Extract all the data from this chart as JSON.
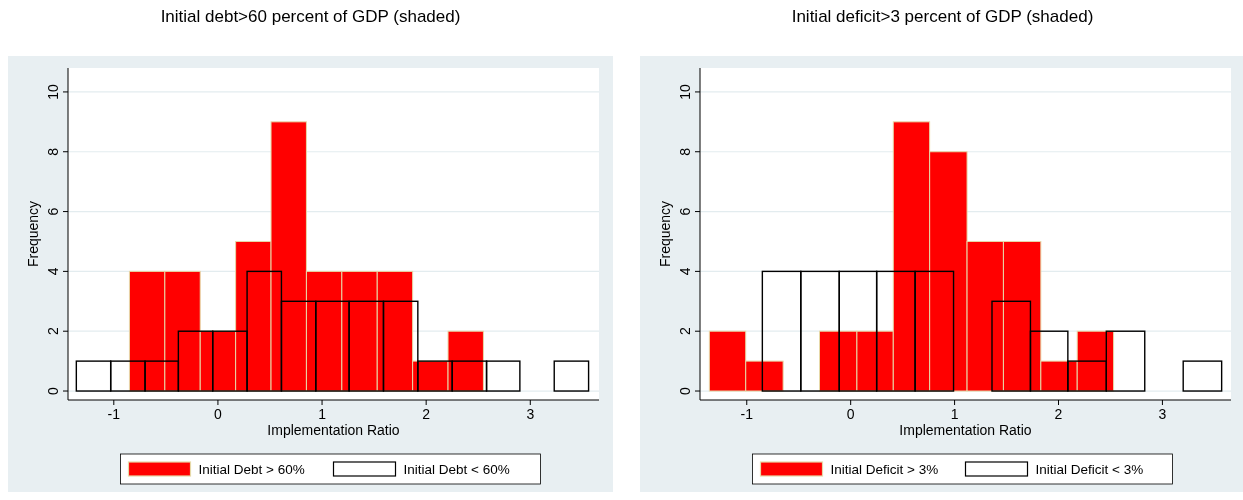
{
  "chart_data": [
    {
      "type": "histogram",
      "title": "Initial debt>60 percent of GDP (shaded)",
      "xlabel": "Implementation Ratio",
      "ylabel": "Frequency",
      "xlim": [
        -1.44,
        3.66
      ],
      "ylim": [
        -0.3,
        10.8
      ],
      "xticks": [
        -1,
        0,
        1,
        2,
        3
      ],
      "yticks": [
        0,
        2,
        4,
        6,
        8,
        10
      ],
      "grid": "y",
      "legend": "bottom",
      "bins": [
        -0.85,
        -0.51,
        -0.17,
        0.17,
        0.51,
        0.85,
        1.19,
        1.53,
        1.87,
        2.21,
        2.55
      ],
      "series": [
        {
          "name": "Initial Debt > 60%",
          "color": "#ff0000",
          "values": [
            4,
            4,
            2,
            5,
            9,
            4,
            4,
            4,
            1,
            2
          ]
        },
        {
          "name": "Initial Debt < 60%",
          "color": "#000000",
          "bins": [
            -1.36,
            -1.03,
            -0.7,
            -0.38,
            -0.05,
            0.28,
            0.61,
            0.94,
            1.26,
            1.59,
            1.92,
            2.25,
            2.58,
            2.9,
            3.23,
            3.56
          ],
          "values": [
            1,
            1,
            1,
            2,
            2,
            4,
            3,
            3,
            3,
            3,
            1,
            1,
            1,
            0,
            1
          ]
        }
      ]
    },
    {
      "type": "histogram",
      "title": "Initial deficit>3 percent of GDP (shaded)",
      "xlabel": "Implementation Ratio",
      "ylabel": "Frequency",
      "xlim": [
        -1.45,
        3.66
      ],
      "ylim": [
        -0.3,
        10.8
      ],
      "xticks": [
        -1,
        0,
        1,
        2,
        3
      ],
      "yticks": [
        0,
        2,
        4,
        6,
        8,
        10
      ],
      "grid": "y",
      "legend": "bottom",
      "bins": [
        -1.36,
        -1.01,
        -0.65,
        -0.3,
        0.06,
        0.41,
        0.76,
        1.12,
        1.47,
        1.83,
        2.18,
        2.53
      ],
      "series": [
        {
          "name": "Initial Deficit > 3%",
          "color": "#ff0000",
          "values": [
            2,
            1,
            0,
            2,
            2,
            9,
            8,
            5,
            5,
            1,
            2
          ]
        },
        {
          "name": "Initial Deficit < 3%",
          "color": "#000000",
          "bins": [
            -0.85,
            -0.48,
            -0.11,
            0.25,
            0.62,
            0.99,
            1.36,
            1.73,
            2.09,
            2.46,
            2.83,
            3.2,
            3.57
          ],
          "values": [
            4,
            4,
            4,
            4,
            4,
            0,
            3,
            2,
            1,
            2,
            0,
            1
          ]
        }
      ]
    }
  ]
}
